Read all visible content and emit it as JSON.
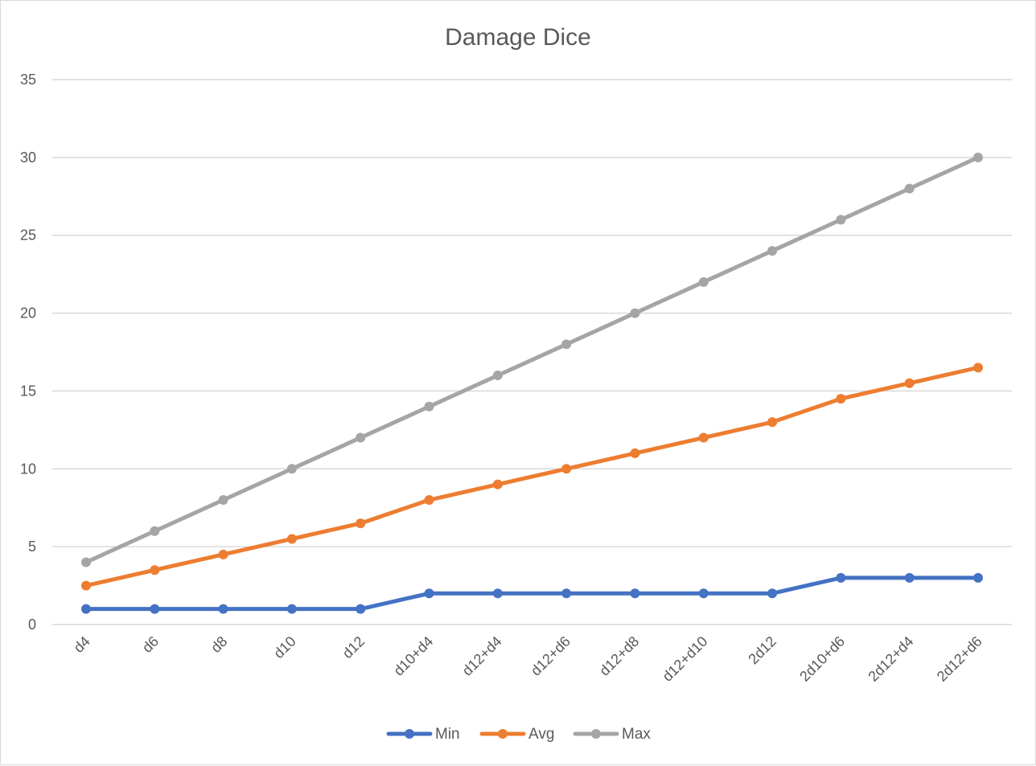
{
  "chart_data": {
    "type": "line",
    "title": "Damage Dice",
    "xlabel": "",
    "ylabel": "",
    "categories": [
      "d4",
      "d6",
      "d8",
      "d10",
      "d12",
      "d10+d4",
      "d12+d4",
      "d12+d6",
      "d12+d8",
      "d12+d10",
      "2d12",
      "2d10+d6",
      "2d12+d4",
      "2d12+d6"
    ],
    "ylim": [
      0,
      35
    ],
    "yticks": [
      0,
      5,
      10,
      15,
      20,
      25,
      30,
      35
    ],
    "grid": true,
    "legend_position": "bottom",
    "series": [
      {
        "name": "Min",
        "color": "#4472c4",
        "values": [
          1,
          1,
          1,
          1,
          1,
          2,
          2,
          2,
          2,
          2,
          2,
          3,
          3,
          3
        ]
      },
      {
        "name": "Avg",
        "color": "#ed7d31",
        "values": [
          2.5,
          3.5,
          4.5,
          5.5,
          6.5,
          8,
          9,
          10,
          11,
          12,
          13,
          14.5,
          15.5,
          16.5
        ]
      },
      {
        "name": "Max",
        "color": "#a5a5a5",
        "values": [
          4,
          6,
          8,
          10,
          12,
          14,
          16,
          18,
          20,
          22,
          24,
          26,
          28,
          30
        ]
      }
    ]
  }
}
